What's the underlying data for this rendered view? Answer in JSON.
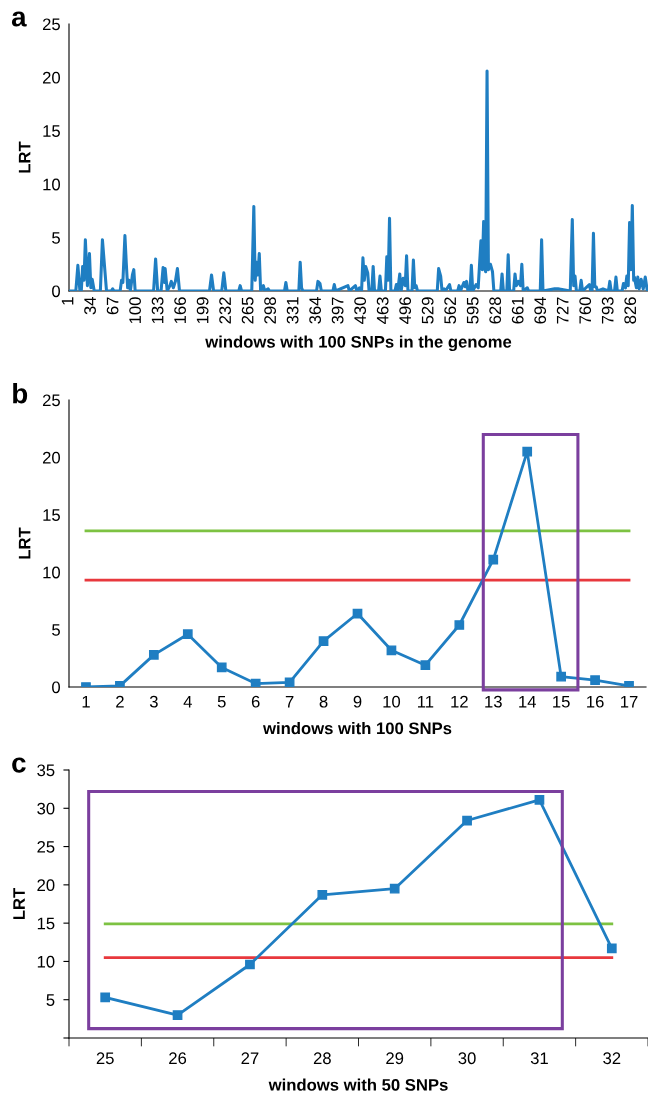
{
  "chart_data": [
    {
      "type": "line",
      "title": "a",
      "xlabel": "windows with 100 SNPs in the genome",
      "ylabel": "LRT",
      "xlim": [
        1,
        850
      ],
      "xticks": [
        1,
        34,
        67,
        100,
        133,
        166,
        199,
        232,
        265,
        298,
        331,
        364,
        397,
        430,
        463,
        496,
        529,
        562,
        595,
        628,
        661,
        694,
        727,
        760,
        793,
        826
      ],
      "ylim": [
        0,
        25
      ],
      "yticks": [
        0,
        5,
        10,
        15,
        20,
        25
      ],
      "grid": false,
      "legend": false,
      "marker": "none",
      "line_style": "solid",
      "x": [
        1,
        11,
        14,
        17,
        19,
        21,
        23,
        25,
        28,
        31,
        33,
        35,
        38,
        47,
        50,
        53,
        56,
        63,
        65,
        67,
        76,
        78,
        80,
        83,
        85,
        87,
        89,
        91,
        94,
        96,
        98,
        125,
        128,
        131,
        136,
        139,
        141,
        142,
        145,
        149,
        151,
        154,
        157,
        160,
        163,
        207,
        210,
        213,
        225,
        228,
        231,
        250,
        252,
        254,
        269,
        272,
        274,
        276,
        278,
        280,
        282,
        286,
        288,
        293,
        295,
        317,
        319,
        321,
        338,
        340,
        342,
        344,
        364,
        366,
        369,
        371,
        388,
        390,
        392,
        410,
        412,
        421,
        423,
        427,
        430,
        432,
        434,
        436,
        439,
        441,
        445,
        447,
        449,
        455,
        457,
        459,
        465,
        467,
        469,
        471,
        473,
        479,
        481,
        483,
        486,
        488,
        491,
        494,
        496,
        498,
        504,
        506,
        508,
        510,
        512,
        541,
        543,
        546,
        548,
        551,
        553,
        559,
        561,
        571,
        573,
        575,
        580,
        582,
        584,
        586,
        589,
        591,
        593,
        598,
        601,
        605,
        607,
        609,
        611,
        612,
        614,
        616,
        619,
        622,
        624,
        634,
        636,
        638,
        643,
        645,
        647,
        653,
        655,
        657,
        660,
        663,
        665,
        667,
        673,
        675,
        692,
        694,
        696,
        713,
        718,
        736,
        739,
        741,
        743,
        745,
        750,
        752,
        754,
        764,
        766,
        768,
        770,
        772,
        774,
        776,
        784,
        792,
        794,
        796,
        801,
        803,
        805,
        812,
        814,
        817,
        819,
        821,
        823,
        825,
        827,
        829,
        830,
        833,
        835,
        837,
        840,
        843,
        846,
        849
      ],
      "series": [
        {
          "color": "#1f7ec2",
          "values": [
            0,
            0,
            2.4,
            0,
            0,
            2.3,
            1.0,
            4.8,
            0.5,
            3.5,
            0.3,
            1.1,
            0,
            0,
            4.8,
            2.4,
            0,
            0,
            0.2,
            0,
            0,
            1.0,
            0.8,
            5.2,
            2.6,
            0.3,
            1.0,
            0,
            1.5,
            2.0,
            0,
            0,
            3.0,
            0,
            0,
            2.2,
            0.8,
            2.1,
            0,
            0.5,
            0.9,
            0.3,
            0.9,
            2.1,
            0,
            0,
            1.5,
            0,
            0,
            1.7,
            0,
            0,
            0.5,
            0,
            0,
            7.9,
            1.0,
            2.7,
            1.5,
            3.5,
            0,
            0.5,
            0,
            0.2,
            0,
            0,
            0.8,
            0,
            0,
            2.7,
            0.3,
            0,
            0,
            0.9,
            0.7,
            0,
            0,
            0.6,
            0,
            0.5,
            0,
            0.5,
            0,
            0.3,
            0,
            3.1,
            1.0,
            2.3,
            1.7,
            0,
            0,
            2.3,
            0,
            0,
            1.4,
            0,
            0,
            3.2,
            1.0,
            6.8,
            0,
            0,
            0.6,
            0,
            1.6,
            0,
            1.2,
            0.5,
            3.3,
            0,
            0,
            2.9,
            0.3,
            0.5,
            0,
            0,
            2.1,
            1.4,
            0,
            0.2,
            0,
            0.6,
            0,
            0,
            0.5,
            0,
            0.8,
            0.4,
            0.9,
            0,
            0,
            2.4,
            0,
            0.6,
            0.3,
            4.7,
            2.0,
            6.5,
            2.0,
            1.8,
            20.6,
            2.0,
            2.5,
            1.8,
            0,
            0,
            1.6,
            0,
            0,
            3.4,
            0,
            0,
            1.6,
            0.5,
            0.9,
            0.5,
            2.5,
            0,
            0.3,
            0,
            0,
            4.8,
            0,
            0.2,
            0.2,
            0,
            6.7,
            0.5,
            1.4,
            0,
            0,
            1.0,
            0,
            0.6,
            0,
            0,
            5.4,
            0.4,
            0.4,
            0,
            0.2,
            0,
            0.9,
            0,
            0,
            1.3,
            0,
            0,
            0.7,
            0.3,
            1.4,
            0.5,
            6.4,
            2.0,
            8.0,
            1.0,
            1.3,
            0.3,
            1.3,
            0.2,
            1.1,
            0.2,
            1.3,
            0
          ]
        }
      ]
    },
    {
      "type": "line",
      "title": "b",
      "xlabel": "windows with 100 SNPs",
      "ylabel": "LRT",
      "categories": [
        "1",
        "2",
        "3",
        "4",
        "5",
        "6",
        "7",
        "8",
        "9",
        "10",
        "11",
        "12",
        "13",
        "14",
        "15",
        "16",
        "17"
      ],
      "ylim": [
        0,
        25
      ],
      "yticks": [
        0,
        5,
        10,
        15,
        20,
        25
      ],
      "grid": false,
      "legend": false,
      "marker": "square",
      "line_style": "solid",
      "series": [
        {
          "color": "#1f7ec2",
          "values": [
            0.0,
            0.1,
            2.8,
            4.6,
            1.7,
            0.3,
            0.4,
            4.0,
            6.4,
            3.2,
            1.9,
            5.4,
            11.1,
            20.5,
            0.9,
            0.6,
            0.1
          ]
        }
      ],
      "ref_lines": [
        {
          "axis": "y",
          "value": 13.6,
          "color": "#7dc242"
        },
        {
          "axis": "y",
          "value": 9.3,
          "color": "#e8383d"
        }
      ]
    },
    {
      "type": "line",
      "title": "c",
      "xlabel": "windows with 50 SNPs",
      "ylabel": "LRT",
      "categories": [
        "25",
        "26",
        "27",
        "28",
        "29",
        "30",
        "31",
        "32"
      ],
      "ylim": [
        0,
        35
      ],
      "yticks": [
        {
          "value": 0,
          "label": null
        },
        5,
        10,
        15,
        20,
        25,
        30,
        35
      ],
      "grid": false,
      "legend": false,
      "marker": "square",
      "line_style": "solid",
      "series": [
        {
          "color": "#1f7ec2",
          "values": [
            5.3,
            3.0,
            9.6,
            18.7,
            19.5,
            28.4,
            31.1,
            11.7
          ]
        }
      ],
      "ref_lines": [
        {
          "axis": "y",
          "value": 14.9,
          "color": "#7dc242"
        },
        {
          "axis": "y",
          "value": 10.5,
          "color": "#e8383d"
        }
      ]
    }
  ]
}
